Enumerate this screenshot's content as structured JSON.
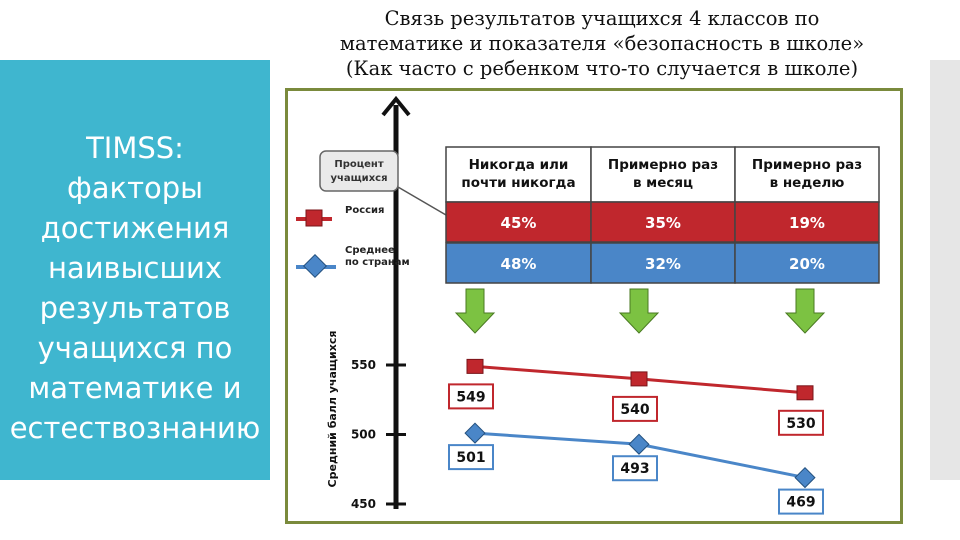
{
  "sidebar": {
    "lines": [
      "TIMSS:",
      "факторы",
      "достижения",
      "наивысших",
      "результатов",
      "учащихся по",
      "математике и",
      "естествознанию"
    ]
  },
  "title": {
    "lines": [
      "Связь результатов учащихся 4 классов по",
      "математике и показателя «безопасность в школе»",
      "(Как часто с ребенком что-то случается в школе)"
    ]
  },
  "colors": {
    "russia": "#c0272d",
    "average": "#4a86c8",
    "sidebar": "#3fb6cf",
    "arrow": "#7cc242",
    "frame": "#7a8a3c"
  },
  "table": {
    "callout_label": [
      "Процент",
      "учащихся"
    ],
    "headers": [
      [
        "Никогда или",
        "почти никогда"
      ],
      [
        "Примерно раз",
        "в месяц"
      ],
      [
        "Примерно раз",
        "в неделю"
      ]
    ],
    "rows": [
      {
        "legend": [
          "Россия"
        ],
        "cells": [
          "45%",
          "35%",
          "19%"
        ]
      },
      {
        "legend": [
          "Среднее",
          "по странам"
        ],
        "cells": [
          "48%",
          "32%",
          "20%"
        ]
      }
    ]
  },
  "chart_data": {
    "type": "line",
    "title": "Связь результатов учащихся 4 классов по математике и показателя «безопасность в школе» (Как часто с ребенком что-то случается в школе)",
    "ylabel": "Средний балл учащихся",
    "categories": [
      "Никогда или почти никогда",
      "Примерно раз в месяц",
      "Примерно раз в неделю"
    ],
    "ylim": [
      450,
      550
    ],
    "yticks": [
      450,
      500,
      550
    ],
    "series": [
      {
        "name": "Россия",
        "values": [
          549,
          540,
          530
        ]
      },
      {
        "name": "Среднее по странам",
        "values": [
          501,
          493,
          469
        ]
      }
    ],
    "data_labels": true,
    "grid": false
  }
}
